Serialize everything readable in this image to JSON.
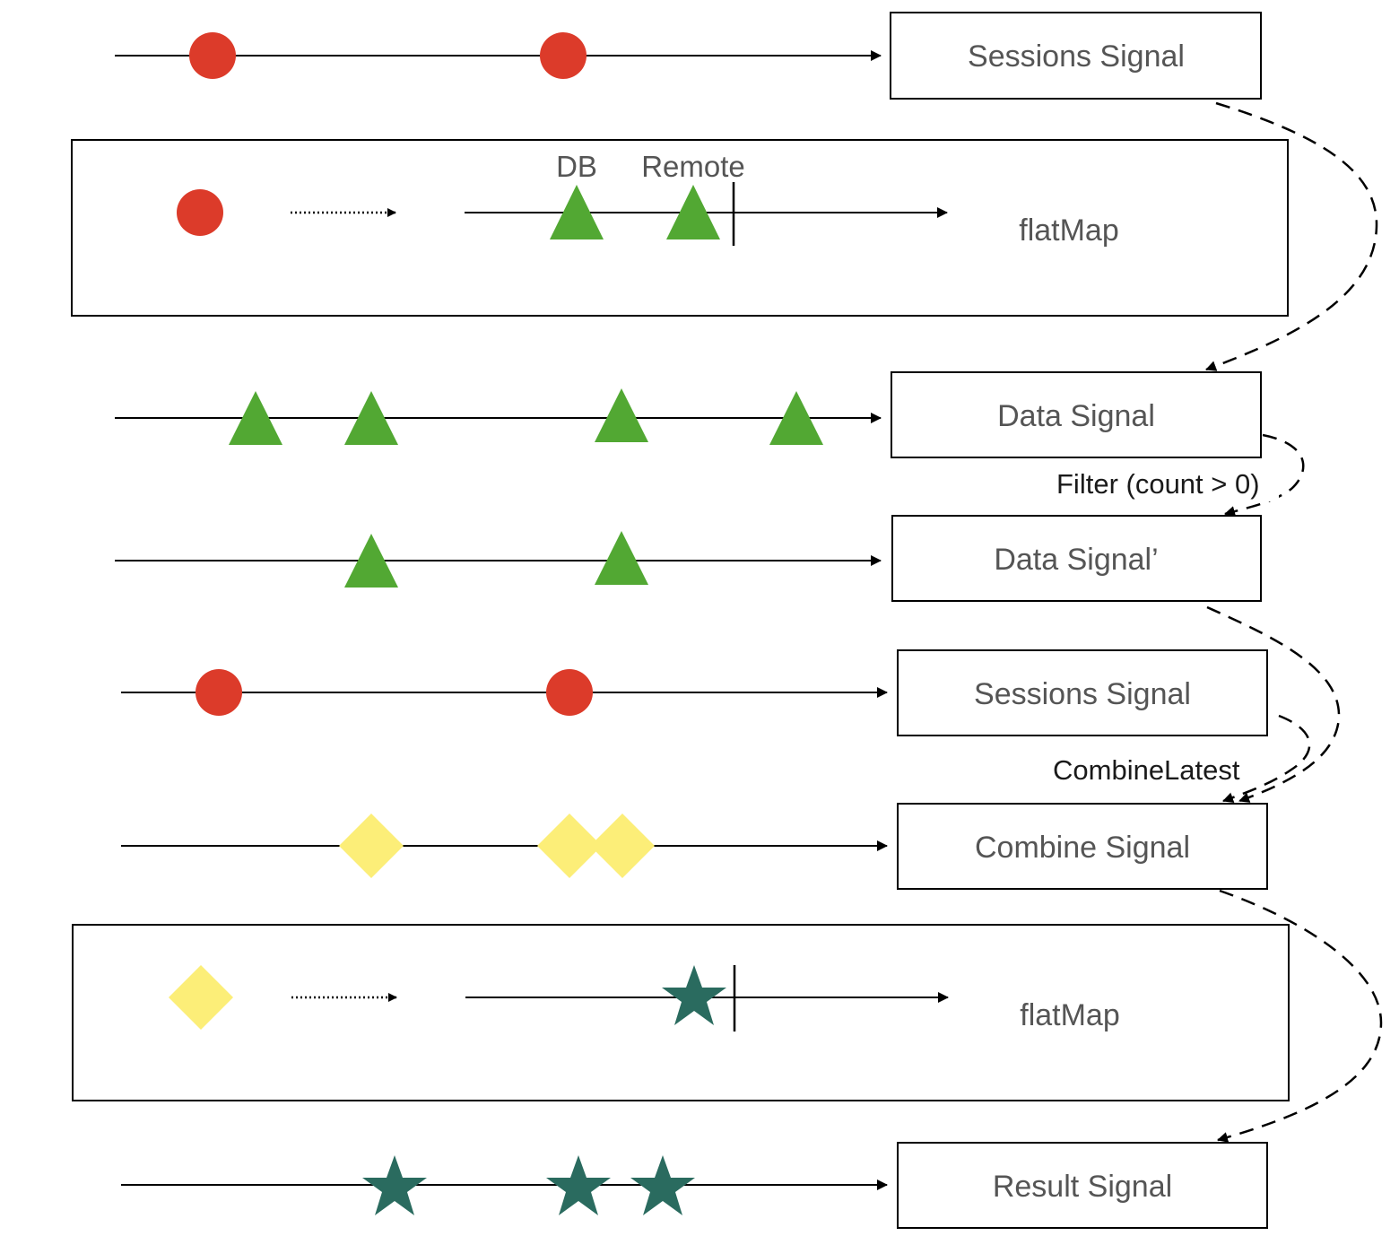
{
  "colors": {
    "session": "#dc3b2a",
    "data": "#52a833",
    "combine": "#fcee78",
    "result": "#2a6b5f",
    "line": "#000000",
    "label": "#555555"
  },
  "boxes": {
    "sessions_1": "Sessions Signal",
    "flatmap_1": "flatMap",
    "data": "Data Signal",
    "data_prime": "Data Signal’",
    "sessions_2": "Sessions Signal",
    "combine": "Combine Signal",
    "flatmap_2": "flatMap",
    "result": "Result Signal"
  },
  "markers": {
    "db": "DB",
    "remote": "Remote"
  },
  "operators": {
    "filter": "Filter (count > 0)",
    "combine_latest": "CombineLatest"
  }
}
